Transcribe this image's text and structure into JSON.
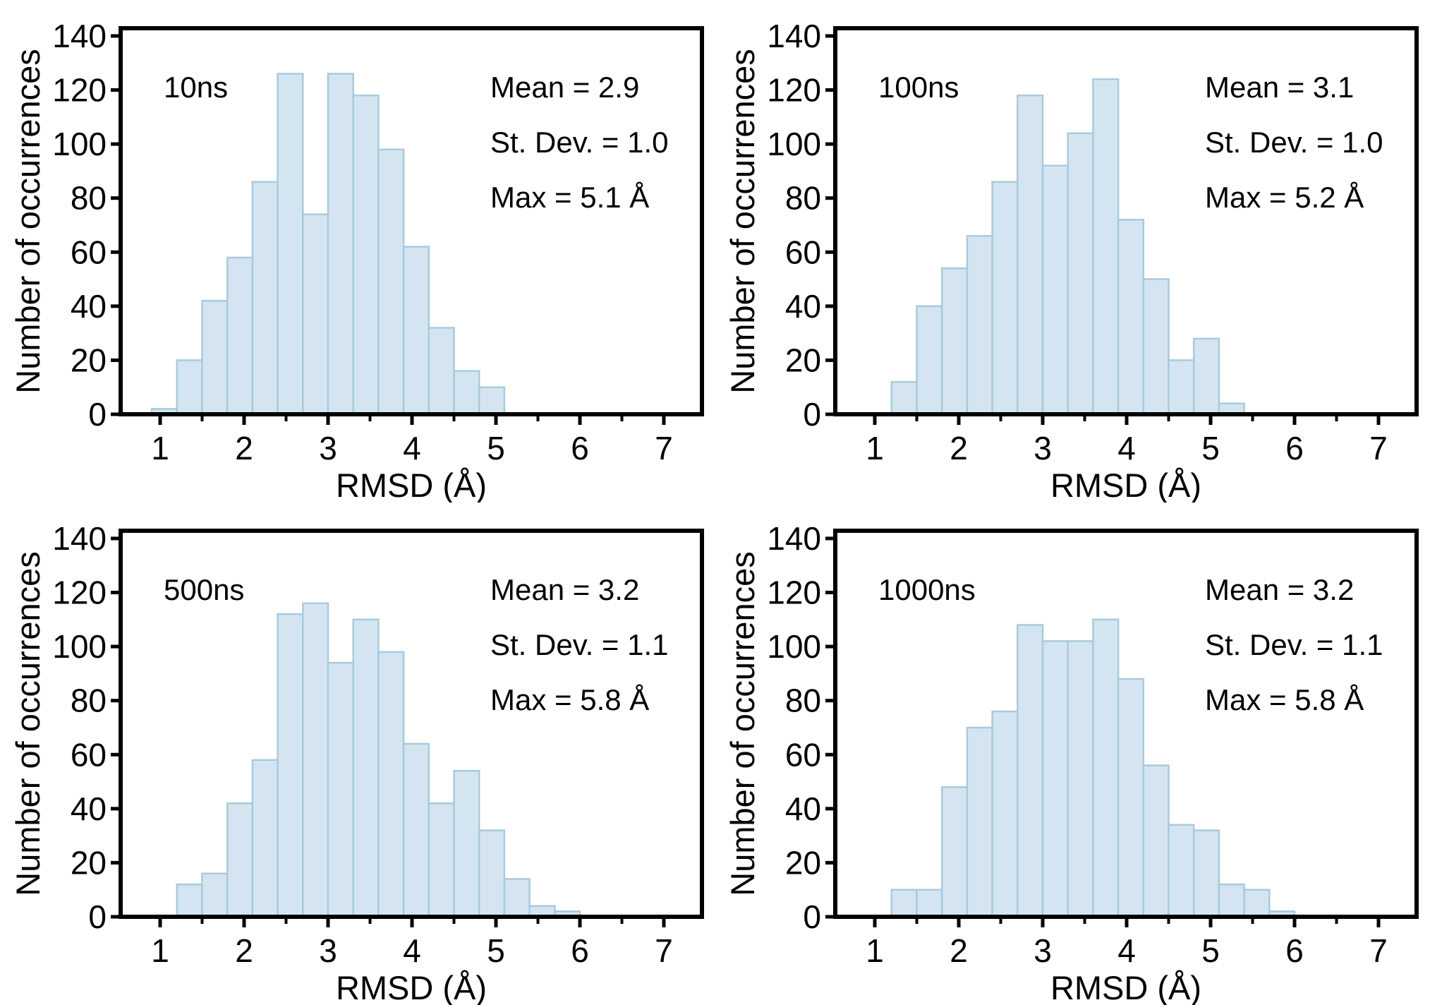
{
  "page": {
    "background": "#ffffff",
    "layout": "2x2 grid of histogram panels"
  },
  "axes": {
    "xlabel": "RMSD (Å)",
    "ylabel": "Number of occurrences",
    "xticks": [
      1,
      2,
      3,
      4,
      5,
      6,
      7
    ],
    "xminorticks": [
      1.5,
      2.5,
      3.5,
      4.5,
      5.5,
      6.5
    ],
    "yticks": [
      0,
      20,
      40,
      60,
      80,
      100,
      120,
      140
    ],
    "xlim": [
      0.52,
      7.45
    ],
    "ylim": [
      0,
      143
    ],
    "grid": false,
    "legend": "none"
  },
  "style": {
    "bar_fill": "#d4e5f1",
    "bar_stroke": "#a9cadd",
    "axis_color": "#000000",
    "text_color": "#000000"
  },
  "chart_data": [
    {
      "type": "bar",
      "subtype": "histogram",
      "label": "10ns",
      "stats": {
        "mean": "Mean = 2.9",
        "stdev": "St. Dev. = 1.0",
        "max": "Max = 5.1 Å"
      },
      "bin_start": 0.9,
      "bin_width": 0.3,
      "values": [
        2,
        20,
        42,
        58,
        86,
        126,
        74,
        126,
        118,
        98,
        62,
        32,
        16,
        10
      ],
      "xlabel": "RMSD (Å)",
      "ylabel": "Number of occurrences"
    },
    {
      "type": "bar",
      "subtype": "histogram",
      "label": "100ns",
      "stats": {
        "mean": "Mean = 3.1",
        "stdev": "St. Dev. = 1.0",
        "max": "Max = 5.2 Å"
      },
      "bin_start": 1.2,
      "bin_width": 0.3,
      "values": [
        12,
        40,
        54,
        66,
        86,
        118,
        92,
        104,
        124,
        72,
        50,
        20,
        28,
        4
      ],
      "xlabel": "RMSD (Å)",
      "ylabel": "Number of occurrences"
    },
    {
      "type": "bar",
      "subtype": "histogram",
      "label": "500ns",
      "stats": {
        "mean": "Mean = 3.2",
        "stdev": "St. Dev. = 1.1",
        "max": "Max = 5.8 Å"
      },
      "bin_start": 1.2,
      "bin_width": 0.3,
      "values": [
        12,
        16,
        42,
        58,
        112,
        116,
        94,
        110,
        98,
        64,
        42,
        54,
        32,
        14,
        4,
        2
      ],
      "xlabel": "RMSD (Å)",
      "ylabel": "Number of occurrences"
    },
    {
      "type": "bar",
      "subtype": "histogram",
      "label": "1000ns",
      "stats": {
        "mean": "Mean = 3.2",
        "stdev": "St. Dev. = 1.1",
        "max": "Max = 5.8 Å"
      },
      "bin_start": 1.2,
      "bin_width": 0.3,
      "values": [
        10,
        10,
        48,
        70,
        76,
        108,
        102,
        102,
        110,
        88,
        56,
        34,
        32,
        12,
        10,
        2
      ],
      "xlabel": "RMSD (Å)",
      "ylabel": "Number of occurrences"
    }
  ]
}
